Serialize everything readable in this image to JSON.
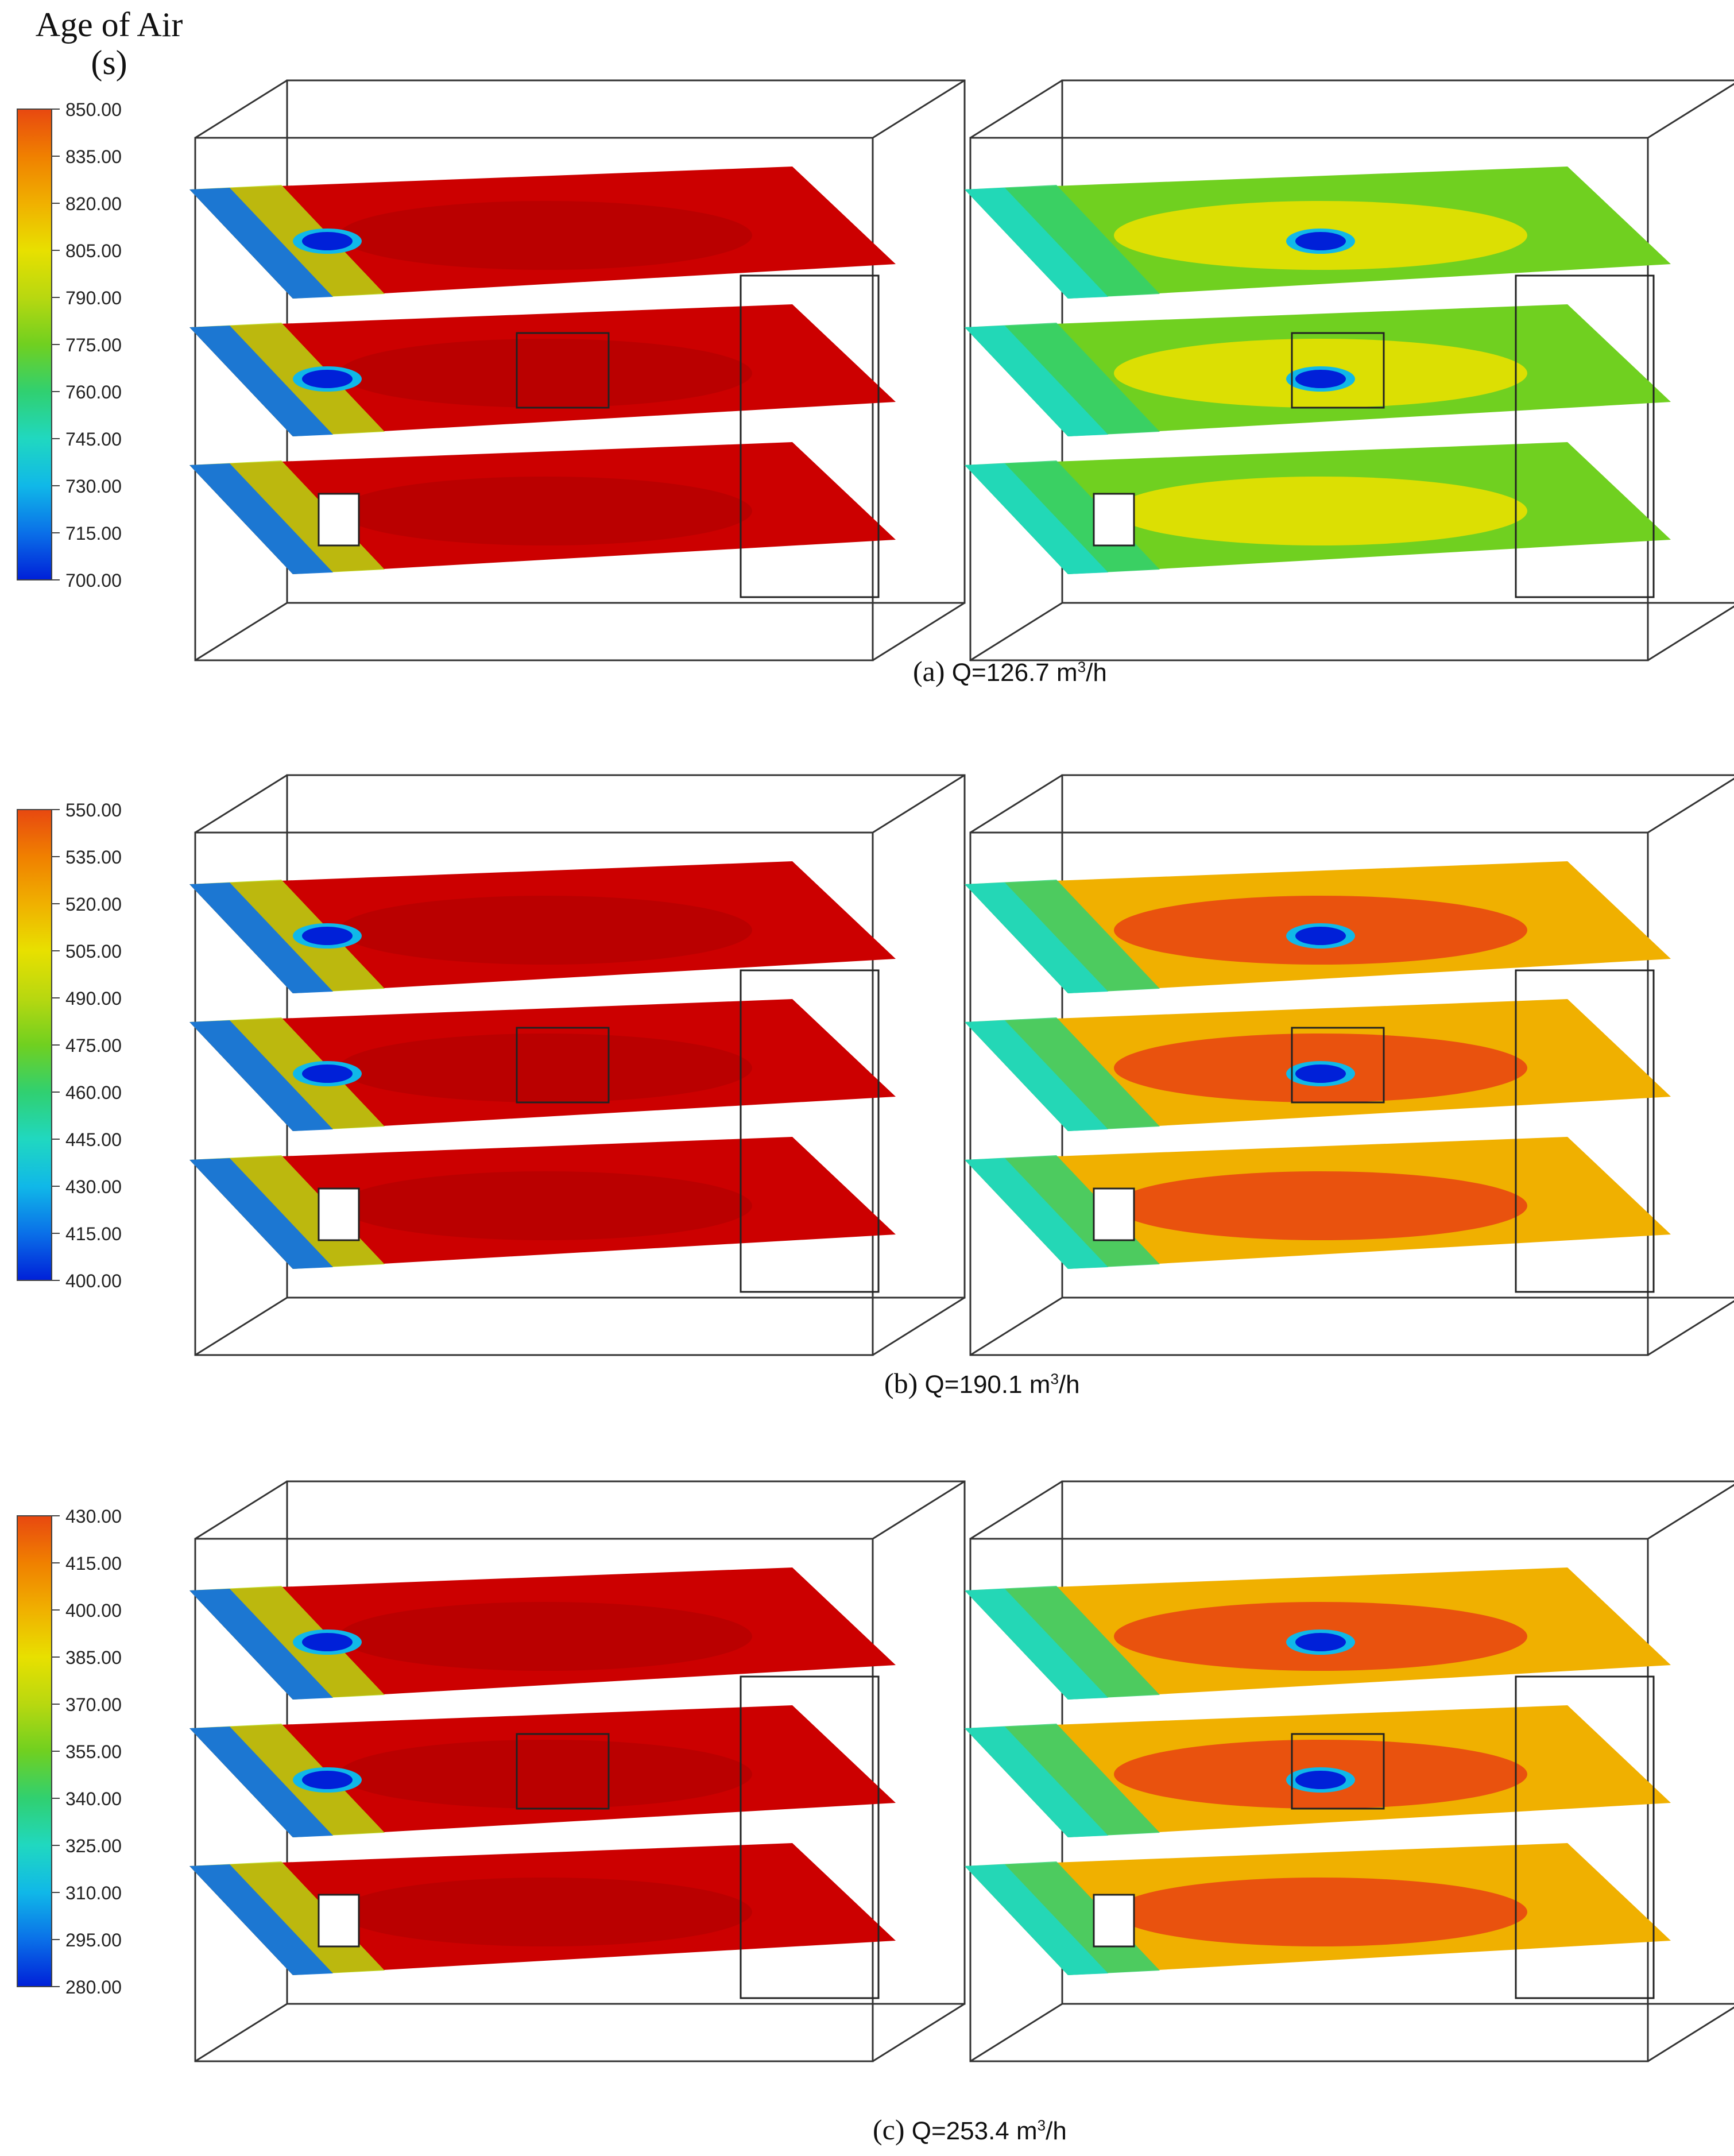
{
  "legend_title_line1": "Age of Air",
  "legend_title_line2": "(s)",
  "colormap": [
    "#0020d8",
    "#0a70e8",
    "#10b8e8",
    "#20d8c0",
    "#30d070",
    "#70d020",
    "#b8d810",
    "#e8e000",
    "#f0b000",
    "#f08000",
    "#e84810",
    "#cc0000"
  ],
  "panels": [
    {
      "id": "a",
      "caption_letter": "(a)",
      "caption_prefix": "Q=126.7 m",
      "caption_sup": "3",
      "caption_suffix": "/h",
      "legend_ticks": [
        "850.00",
        "835.00",
        "820.00",
        "805.00",
        "790.00",
        "775.00",
        "760.00",
        "745.00",
        "730.00",
        "715.00",
        "700.00"
      ]
    },
    {
      "id": "b",
      "caption_letter": "(b)",
      "caption_prefix": "Q=190.1 m",
      "caption_sup": "3",
      "caption_suffix": "/h",
      "legend_ticks": [
        "550.00",
        "535.00",
        "520.00",
        "505.00",
        "490.00",
        "475.00",
        "460.00",
        "445.00",
        "430.00",
        "415.00",
        "400.00"
      ]
    },
    {
      "id": "c",
      "caption_letter": "(c)",
      "caption_prefix": "Q=253.4 m",
      "caption_sup": "3",
      "caption_suffix": "/h",
      "legend_ticks": [
        "430.00",
        "415.00",
        "400.00",
        "385.00",
        "370.00",
        "355.00",
        "340.00",
        "325.00",
        "310.00",
        "295.00",
        "280.00"
      ]
    }
  ]
}
